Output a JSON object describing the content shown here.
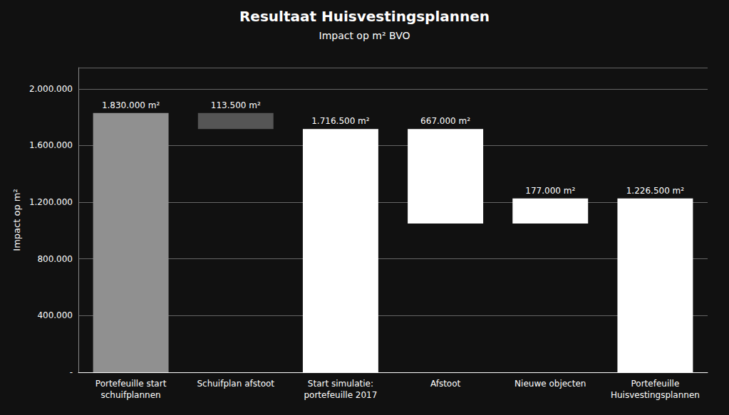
{
  "chart_data": {
    "type": "bar",
    "title": "Resultaat Huisvestingsplannen",
    "subtitle": "Impact op m² BVO",
    "ylabel": "Impact op m²",
    "categories": [
      "Portefeuille start\nschuifplannen",
      "Schuifplan afstoot",
      "Start simulatie:\nportefeuille 2017",
      "Afstoot",
      "Nieuwe objecten",
      "Portefeuille\nHuisvestingsplannen"
    ],
    "bottoms": [
      0,
      1716500,
      0,
      1049500,
      1049500,
      0
    ],
    "values": [
      1830000,
      113500,
      1716500,
      667000,
      177000,
      1226500
    ],
    "value_labels": [
      "1.830.000 m²",
      "113.500 m²",
      "1.716.500 m²",
      "667.000 m²",
      "177.000 m²",
      "1.226.500 m²"
    ],
    "colors": [
      "#909090",
      "#555555",
      "#ffffff",
      "#ffffff",
      "#ffffff",
      "#ffffff"
    ],
    "data_labels": true,
    "ylim": [
      0,
      2150000
    ],
    "yticks": [
      {
        "value": 0,
        "label": "-"
      },
      {
        "value": 400000,
        "label": "400.000"
      },
      {
        "value": 800000,
        "label": "800.000"
      },
      {
        "value": 1200000,
        "label": "1.200.000"
      },
      {
        "value": 1600000,
        "label": "1.600.000"
      },
      {
        "value": 2000000,
        "label": "2.000.000"
      }
    ],
    "grid": true
  }
}
